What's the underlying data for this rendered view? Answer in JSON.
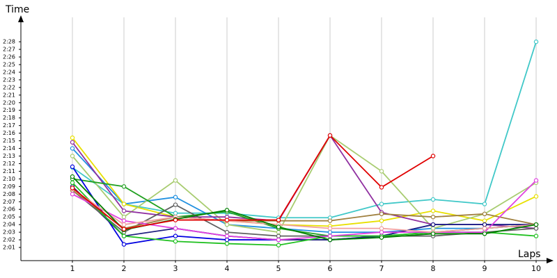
{
  "chart_data": {
    "type": "line",
    "y_label": "Time",
    "x_label": "Laps",
    "x": [
      1,
      2,
      3,
      4,
      5,
      6,
      7,
      8,
      9,
      10
    ],
    "xlim": [
      0,
      10.27
    ],
    "xticks": [
      1,
      2,
      3,
      4,
      5,
      6,
      7,
      8,
      9,
      10
    ],
    "ylim": [
      119.27,
      151.2
    ],
    "yticks": [
      {
        "value": 121,
        "label": "2:01"
      },
      {
        "value": 122,
        "label": "2:02"
      },
      {
        "value": 123,
        "label": "2:03"
      },
      {
        "value": 124,
        "label": "2:04"
      },
      {
        "value": 125,
        "label": "2:05"
      },
      {
        "value": 126,
        "label": "2:06"
      },
      {
        "value": 127,
        "label": "2:07"
      },
      {
        "value": 128,
        "label": "2:08"
      },
      {
        "value": 129,
        "label": "2:09"
      },
      {
        "value": 130,
        "label": "2:10"
      },
      {
        "value": 131,
        "label": "2:11"
      },
      {
        "value": 132,
        "label": "2:12"
      },
      {
        "value": 133,
        "label": "2:13"
      },
      {
        "value": 134,
        "label": "2:14"
      },
      {
        "value": 135,
        "label": "2:15"
      },
      {
        "value": 136,
        "label": "2:16"
      },
      {
        "value": 137,
        "label": "2:17"
      },
      {
        "value": 138,
        "label": "2:18"
      },
      {
        "value": 139,
        "label": "2:19"
      },
      {
        "value": 140,
        "label": "2:20"
      },
      {
        "value": 141,
        "label": "2:21"
      },
      {
        "value": 142,
        "label": "2:22"
      },
      {
        "value": 143,
        "label": "2:23"
      },
      {
        "value": 144,
        "label": "2:24"
      },
      {
        "value": 145,
        "label": "2:25"
      },
      {
        "value": 146,
        "label": "2:26"
      },
      {
        "value": 147,
        "label": "2:27"
      },
      {
        "value": 148,
        "label": "2:28"
      }
    ],
    "grid": true,
    "series": [
      {
        "color": "#40c8c8",
        "values": [
          131.5,
          126.7,
          125.5,
          125.5,
          124.9,
          124.9,
          126.7,
          127.3,
          126.7,
          148.0
        ]
      },
      {
        "color": "#2090e0",
        "values": [
          134.0,
          126.7,
          127.6,
          124.0,
          123.5,
          123.0,
          123.0,
          123.5,
          123.5,
          124.0
        ]
      },
      {
        "color": "#e8e000",
        "values": [
          135.4,
          126.7,
          125.0,
          124.5,
          124.0,
          123.8,
          124.5,
          125.8,
          124.5,
          127.7
        ]
      },
      {
        "color": "#a8cc70",
        "values": [
          133.0,
          125.0,
          129.8,
          124.0,
          123.0,
          135.7,
          131.0,
          123.5,
          125.4,
          129.5
        ]
      },
      {
        "color": "#9030a0",
        "values": [
          134.8,
          125.8,
          125.0,
          125.0,
          124.5,
          135.7,
          125.6,
          124.0,
          124.0,
          123.5
        ]
      },
      {
        "color": "#20a020",
        "values": [
          130.0,
          129.0,
          125.0,
          125.7,
          123.5,
          122.5,
          122.5,
          123.0,
          123.5,
          124.0
        ]
      },
      {
        "color": "#0000e0",
        "values": [
          131.6,
          121.4,
          122.5,
          122.0,
          122.0,
          122.0,
          122.5,
          124.0,
          124.0,
          124.0
        ]
      },
      {
        "color": "#202080",
        "values": [
          129.0,
          122.5,
          123.5,
          122.5,
          122.0,
          122.0,
          122.5,
          124.0,
          124.0,
          124.0
        ]
      },
      {
        "color": "#606060",
        "values": [
          128.5,
          123.0,
          126.6,
          123.0,
          122.5,
          122.5,
          122.5,
          122.5,
          123.0,
          123.5
        ]
      },
      {
        "color": "#a08040",
        "values": [
          128.5,
          123.5,
          125.0,
          124.5,
          124.5,
          124.5,
          125.4,
          125.0,
          125.4,
          124.0
        ]
      },
      {
        "color": "#20c020",
        "values": [
          129.5,
          122.5,
          121.8,
          121.5,
          121.3,
          122.5,
          122.5,
          123.0,
          123.0,
          122.5
        ]
      },
      {
        "color": "#e040e0",
        "values": [
          128.0,
          124.5,
          123.5,
          122.5,
          122.0,
          122.5,
          123.0,
          123.0,
          123.0,
          129.8
        ]
      },
      {
        "color": "#f0a0a0",
        "values": [
          128.7,
          124.0,
          125.0,
          124.5,
          124.0,
          123.5,
          123.5,
          123.0,
          123.5,
          124.0
        ]
      },
      {
        "color": "#008000",
        "values": [
          130.3,
          123.3,
          124.7,
          125.9,
          123.7,
          122.0,
          122.3,
          122.8,
          122.8,
          124.0
        ]
      },
      {
        "color": "#e00000",
        "values": [
          128.8,
          123.4,
          124.6,
          124.6,
          124.6,
          135.7,
          128.9,
          133.0,
          null,
          null
        ]
      }
    ]
  }
}
